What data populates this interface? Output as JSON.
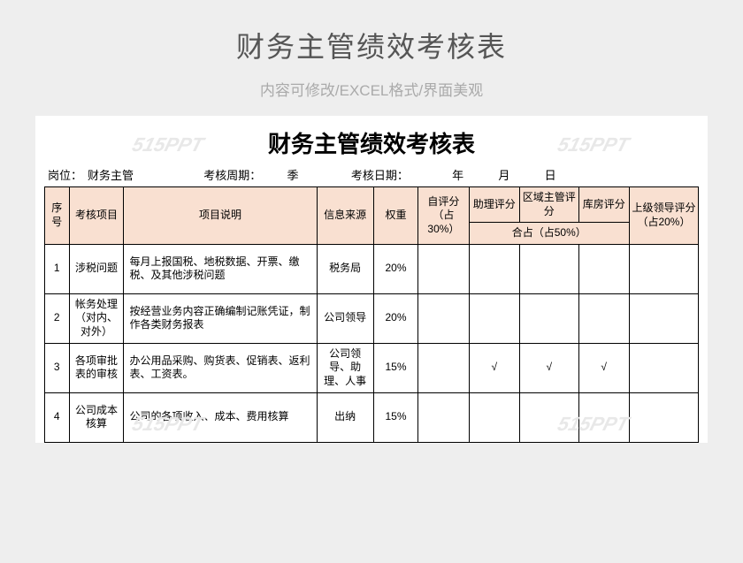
{
  "page": {
    "title": "财务主管绩效考核表",
    "subtitle": "内容可修改/EXCEL格式/界面美观",
    "watermark": "515PPT"
  },
  "sheet": {
    "title": "财务主管绩效考核表",
    "meta": {
      "post_label": "岗位：",
      "post_value": "财务主管",
      "period_label": "考核周期：",
      "period_value": "季",
      "date_label": "考核日期：",
      "date_year": "年",
      "date_month": "月",
      "date_day": "日"
    },
    "headers": {
      "seq": "序号",
      "item": "考核项目",
      "desc": "项目说明",
      "source": "信息来源",
      "weight": "权重",
      "self_score": "自评分（占30%）",
      "assist_score": "助理评分",
      "area_score": "区域主管评分",
      "warehouse_score": "库房评分",
      "combined_share": "合占（占50%）",
      "superior_score": "上级领导评分（占20%）"
    },
    "header_colors": {
      "bg": "#f9e0d1",
      "border": "#000000",
      "text": "#000000"
    },
    "rows": [
      {
        "seq": "1",
        "item": "涉税问题",
        "desc": "每月上报国税、地税数据、开票、缴税、及其他涉税问题",
        "source": "税务局",
        "weight": "20%",
        "self": "",
        "assist": "",
        "area": "",
        "warehouse": "",
        "superior": ""
      },
      {
        "seq": "2",
        "item": "帐务处理（对内、对外）",
        "desc": "按经营业务内容正确编制记账凭证，制作各类财务报表",
        "source": "公司领导",
        "weight": "20%",
        "self": "",
        "assist": "",
        "area": "",
        "warehouse": "",
        "superior": ""
      },
      {
        "seq": "3",
        "item": "各项审批表的审核",
        "desc": "办公用品采购、购货表、促销表、返利表、工资表。",
        "source": "公司领导、助理、人事",
        "weight": "15%",
        "self": "",
        "assist": "√",
        "area": "√",
        "warehouse": "√",
        "superior": ""
      },
      {
        "seq": "4",
        "item": "公司成本核算",
        "desc": "公司的各项收入、成本、费用核算",
        "source": "出纳",
        "weight": "15%",
        "self": "",
        "assist": "",
        "area": "",
        "warehouse": "",
        "superior": ""
      }
    ]
  }
}
